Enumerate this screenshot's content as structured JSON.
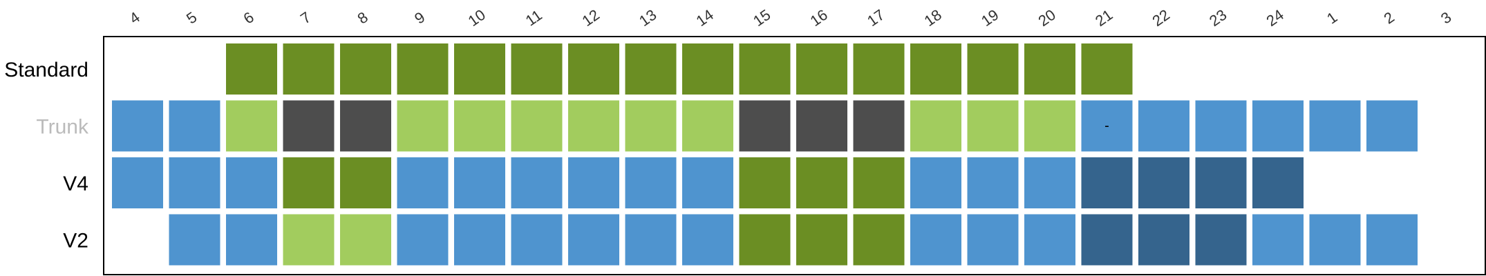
{
  "chart_data": {
    "type": "heatmap",
    "title": "",
    "xlabel": "",
    "ylabel": "",
    "grid": false,
    "legend": "none",
    "hours": [
      "4",
      "5",
      "6",
      "7",
      "8",
      "9",
      "10",
      "11",
      "12",
      "13",
      "14",
      "15",
      "16",
      "17",
      "18",
      "19",
      "20",
      "21",
      "22",
      "23",
      "24",
      "1",
      "2",
      "3"
    ],
    "colors": {
      "peak": "#6b8e23",
      "mid": "#a2cc5e",
      "off": "#4f94cf",
      "night": "#35648d",
      "blocked": "#4d4d4d",
      "row_label": "#000000",
      "row_label_inactive": "#bbbbbb",
      "frame": "#000000"
    },
    "rows": [
      {
        "label": "Standard",
        "label_color": "row_label",
        "cells": [
          null,
          null,
          "peak",
          "peak",
          "peak",
          "peak",
          "peak",
          "peak",
          "peak",
          "peak",
          "peak",
          "peak",
          "peak",
          "peak",
          "peak",
          "peak",
          "peak",
          "peak",
          null,
          null,
          null,
          null,
          null,
          null
        ]
      },
      {
        "label": "Trunk",
        "label_color": "row_label_inactive",
        "cells": [
          "off",
          "off",
          "mid",
          "blocked",
          "blocked",
          "mid",
          "mid",
          "mid",
          "mid",
          "mid",
          "mid",
          "blocked",
          "blocked",
          "blocked",
          "mid",
          "mid",
          "mid",
          "off",
          "off",
          "off",
          "off",
          "off",
          "off",
          null
        ],
        "cell_text": {
          "17": "-"
        }
      },
      {
        "label": "V4",
        "label_color": "row_label",
        "cells": [
          "off",
          "off",
          "off",
          "peak",
          "peak",
          "off",
          "off",
          "off",
          "off",
          "off",
          "off",
          "peak",
          "peak",
          "peak",
          "off",
          "off",
          "off",
          "night",
          "night",
          "night",
          "night",
          null,
          null,
          null
        ]
      },
      {
        "label": "V2",
        "label_color": "row_label",
        "cells": [
          null,
          "off",
          "off",
          "mid",
          "mid",
          "off",
          "off",
          "off",
          "off",
          "off",
          "off",
          "peak",
          "peak",
          "peak",
          "off",
          "off",
          "off",
          "night",
          "night",
          "night",
          "off",
          "off",
          "off",
          null
        ]
      }
    ]
  }
}
